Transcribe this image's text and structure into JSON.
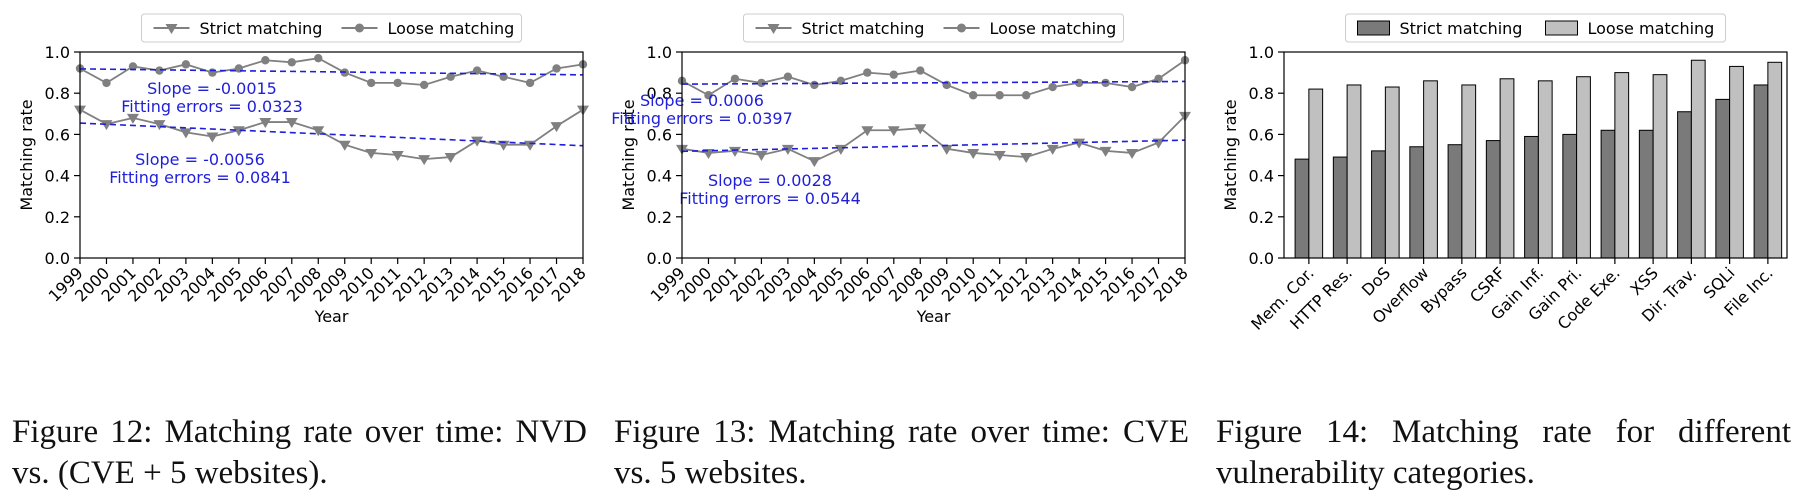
{
  "figures": [
    {
      "caption": "Figure 12:  Matching rate over time: NVD vs. (CVE + 5 websites).",
      "chart_data": {
        "type": "line",
        "categories": [
          "1999",
          "2000",
          "2001",
          "2002",
          "2003",
          "2004",
          "2005",
          "2006",
          "2007",
          "2008",
          "2009",
          "2010",
          "2011",
          "2012",
          "2013",
          "2014",
          "2015",
          "2016",
          "2017",
          "2018"
        ],
        "series": [
          {
            "name": "Strict matching",
            "marker": "triangle-down",
            "color": "#808080",
            "values": [
              0.72,
              0.65,
              0.68,
              0.65,
              0.61,
              0.59,
              0.62,
              0.66,
              0.66,
              0.62,
              0.55,
              0.51,
              0.5,
              0.48,
              0.49,
              0.57,
              0.55,
              0.55,
              0.64,
              0.72
            ]
          },
          {
            "name": "Loose matching",
            "marker": "circle",
            "color": "#808080",
            "values": [
              0.92,
              0.85,
              0.93,
              0.91,
              0.94,
              0.9,
              0.92,
              0.96,
              0.95,
              0.97,
              0.9,
              0.85,
              0.85,
              0.84,
              0.88,
              0.91,
              0.88,
              0.85,
              0.92,
              0.94
            ]
          }
        ],
        "trendlines": [
          {
            "series": "Strict matching",
            "start": 0.655,
            "end": 0.545,
            "color": "#1f1fd9"
          },
          {
            "series": "Loose matching",
            "start": 0.918,
            "end": 0.889,
            "color": "#1f1fd9"
          }
        ],
        "annotations": [
          {
            "series": "Loose matching",
            "lines": [
              "Slope = -0.0015",
              "Fitting errors = 0.0323"
            ],
            "color": "#1f1fd9"
          },
          {
            "series": "Strict matching",
            "lines": [
              "Slope = -0.0056",
              "Fitting errors = 0.0841"
            ],
            "color": "#1f1fd9"
          }
        ],
        "xlabel": "Year",
        "ylabel": "Matching rate",
        "ylim": [
          0,
          1.0
        ],
        "yticks": [
          "0.0",
          "0.2",
          "0.4",
          "0.6",
          "0.8",
          "1.0"
        ],
        "grid": false,
        "legend": "top-center"
      }
    },
    {
      "caption": "Figure 13:  Matching rate over time: CVE vs. 5 websites.",
      "chart_data": {
        "type": "line",
        "categories": [
          "1999",
          "2000",
          "2001",
          "2002",
          "2003",
          "2004",
          "2005",
          "2006",
          "2007",
          "2008",
          "2009",
          "2010",
          "2011",
          "2012",
          "2013",
          "2014",
          "2015",
          "2016",
          "2017",
          "2018"
        ],
        "series": [
          {
            "name": "Strict matching",
            "marker": "triangle-down",
            "color": "#808080",
            "values": [
              0.53,
              0.51,
              0.52,
              0.5,
              0.53,
              0.47,
              0.53,
              0.62,
              0.62,
              0.63,
              0.53,
              0.51,
              0.5,
              0.49,
              0.53,
              0.56,
              0.52,
              0.51,
              0.56,
              0.69
            ]
          },
          {
            "name": "Loose matching",
            "marker": "circle",
            "color": "#808080",
            "values": [
              0.86,
              0.79,
              0.87,
              0.85,
              0.88,
              0.84,
              0.86,
              0.9,
              0.89,
              0.91,
              0.84,
              0.79,
              0.79,
              0.79,
              0.83,
              0.85,
              0.85,
              0.83,
              0.87,
              0.96
            ]
          }
        ],
        "trendlines": [
          {
            "series": "Strict matching",
            "start": 0.518,
            "end": 0.572,
            "color": "#1f1fd9"
          },
          {
            "series": "Loose matching",
            "start": 0.844,
            "end": 0.857,
            "color": "#1f1fd9"
          }
        ],
        "annotations": [
          {
            "series": "Loose matching",
            "lines": [
              "Slope = 0.0006",
              "Fitting errors = 0.0397"
            ],
            "color": "#1f1fd9"
          },
          {
            "series": "Strict matching",
            "lines": [
              "Slope = 0.0028",
              "Fitting errors = 0.0544"
            ],
            "color": "#1f1fd9"
          }
        ],
        "xlabel": "Year",
        "ylabel": "Matching rate",
        "ylim": [
          0,
          1.0
        ],
        "yticks": [
          "0.0",
          "0.2",
          "0.4",
          "0.6",
          "0.8",
          "1.0"
        ],
        "grid": false,
        "legend": "top-center"
      }
    },
    {
      "caption": "Figure 14: Matching rate for different vulnerability categories.",
      "chart_data": {
        "type": "bar",
        "categories": [
          "Mem. Cor.",
          "HTTP Res.",
          "DoS",
          "Overflow",
          "Bypass",
          "CSRF",
          "Gain Inf.",
          "Gain Pri.",
          "Code Exe.",
          "XSS",
          "Dir. Trav.",
          "SQLi",
          "File Inc."
        ],
        "series": [
          {
            "name": "Strict matching",
            "color": "#7a7a7a",
            "values": [
              0.48,
              0.49,
              0.52,
              0.54,
              0.55,
              0.57,
              0.59,
              0.6,
              0.62,
              0.62,
              0.71,
              0.77,
              0.84
            ]
          },
          {
            "name": "Loose matching",
            "color": "#c0c0c0",
            "values": [
              0.82,
              0.84,
              0.83,
              0.86,
              0.84,
              0.87,
              0.86,
              0.88,
              0.9,
              0.89,
              0.96,
              0.93,
              0.95
            ]
          }
        ],
        "xlabel": "",
        "ylabel": "Matching rate",
        "ylim": [
          0,
          1.0
        ],
        "yticks": [
          "0.0",
          "0.2",
          "0.4",
          "0.6",
          "0.8",
          "1.0"
        ],
        "grid": false,
        "legend": "top-center"
      }
    }
  ]
}
